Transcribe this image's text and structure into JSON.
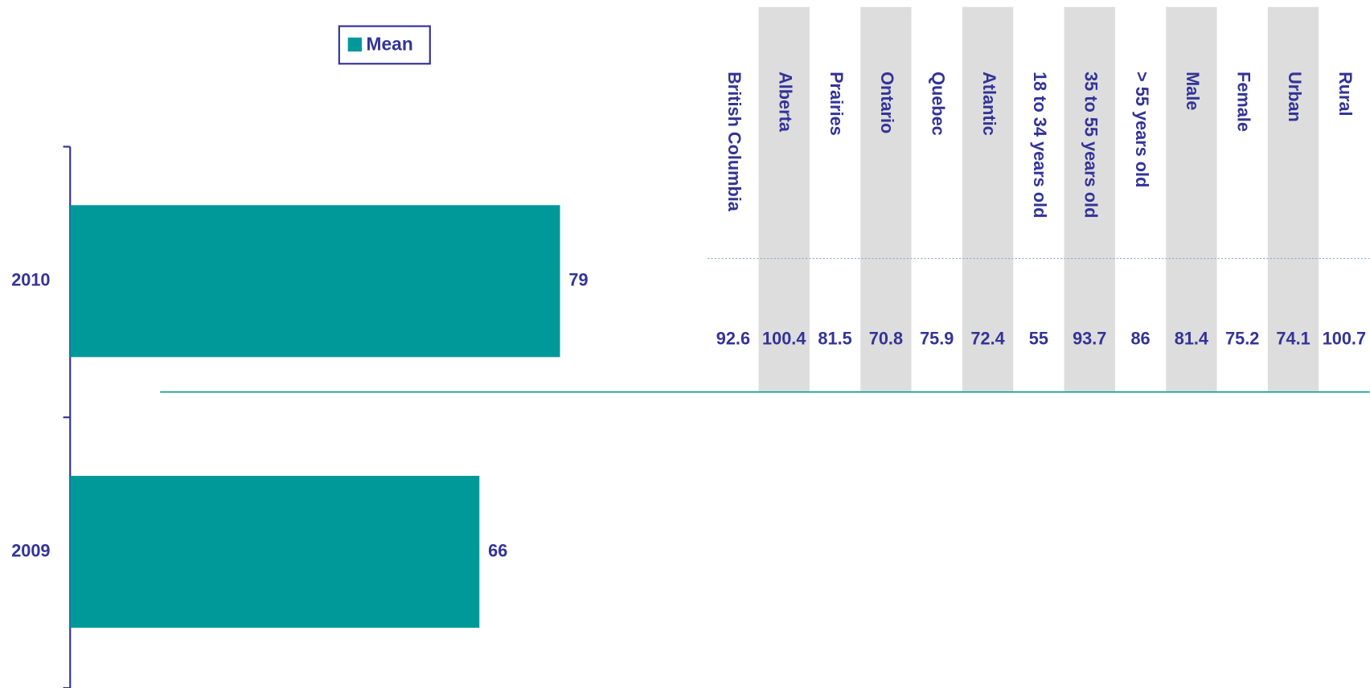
{
  "chart_data": {
    "type": "barh",
    "categories": [
      "2010",
      "2009"
    ],
    "series": [
      {
        "name": "Mean",
        "color": "#009999",
        "values": [
          79,
          66
        ]
      }
    ],
    "xlim": [
      0,
      110
    ]
  },
  "table": {
    "columns": [
      "British Columbia",
      "Alberta",
      "Prairies",
      "Ontario",
      "Quebec",
      "Atlantic",
      "18 to 34 years old",
      "35 to 55 years old",
      "> 55 years old",
      "Male",
      "Female",
      "Urban",
      "Rural"
    ],
    "values": [
      "92.6",
      "100.4",
      "81.5",
      "70.8",
      "75.9",
      "72.4",
      "55",
      "93.7",
      "86",
      "81.4",
      "75.2",
      "74.1",
      "100.7"
    ]
  }
}
